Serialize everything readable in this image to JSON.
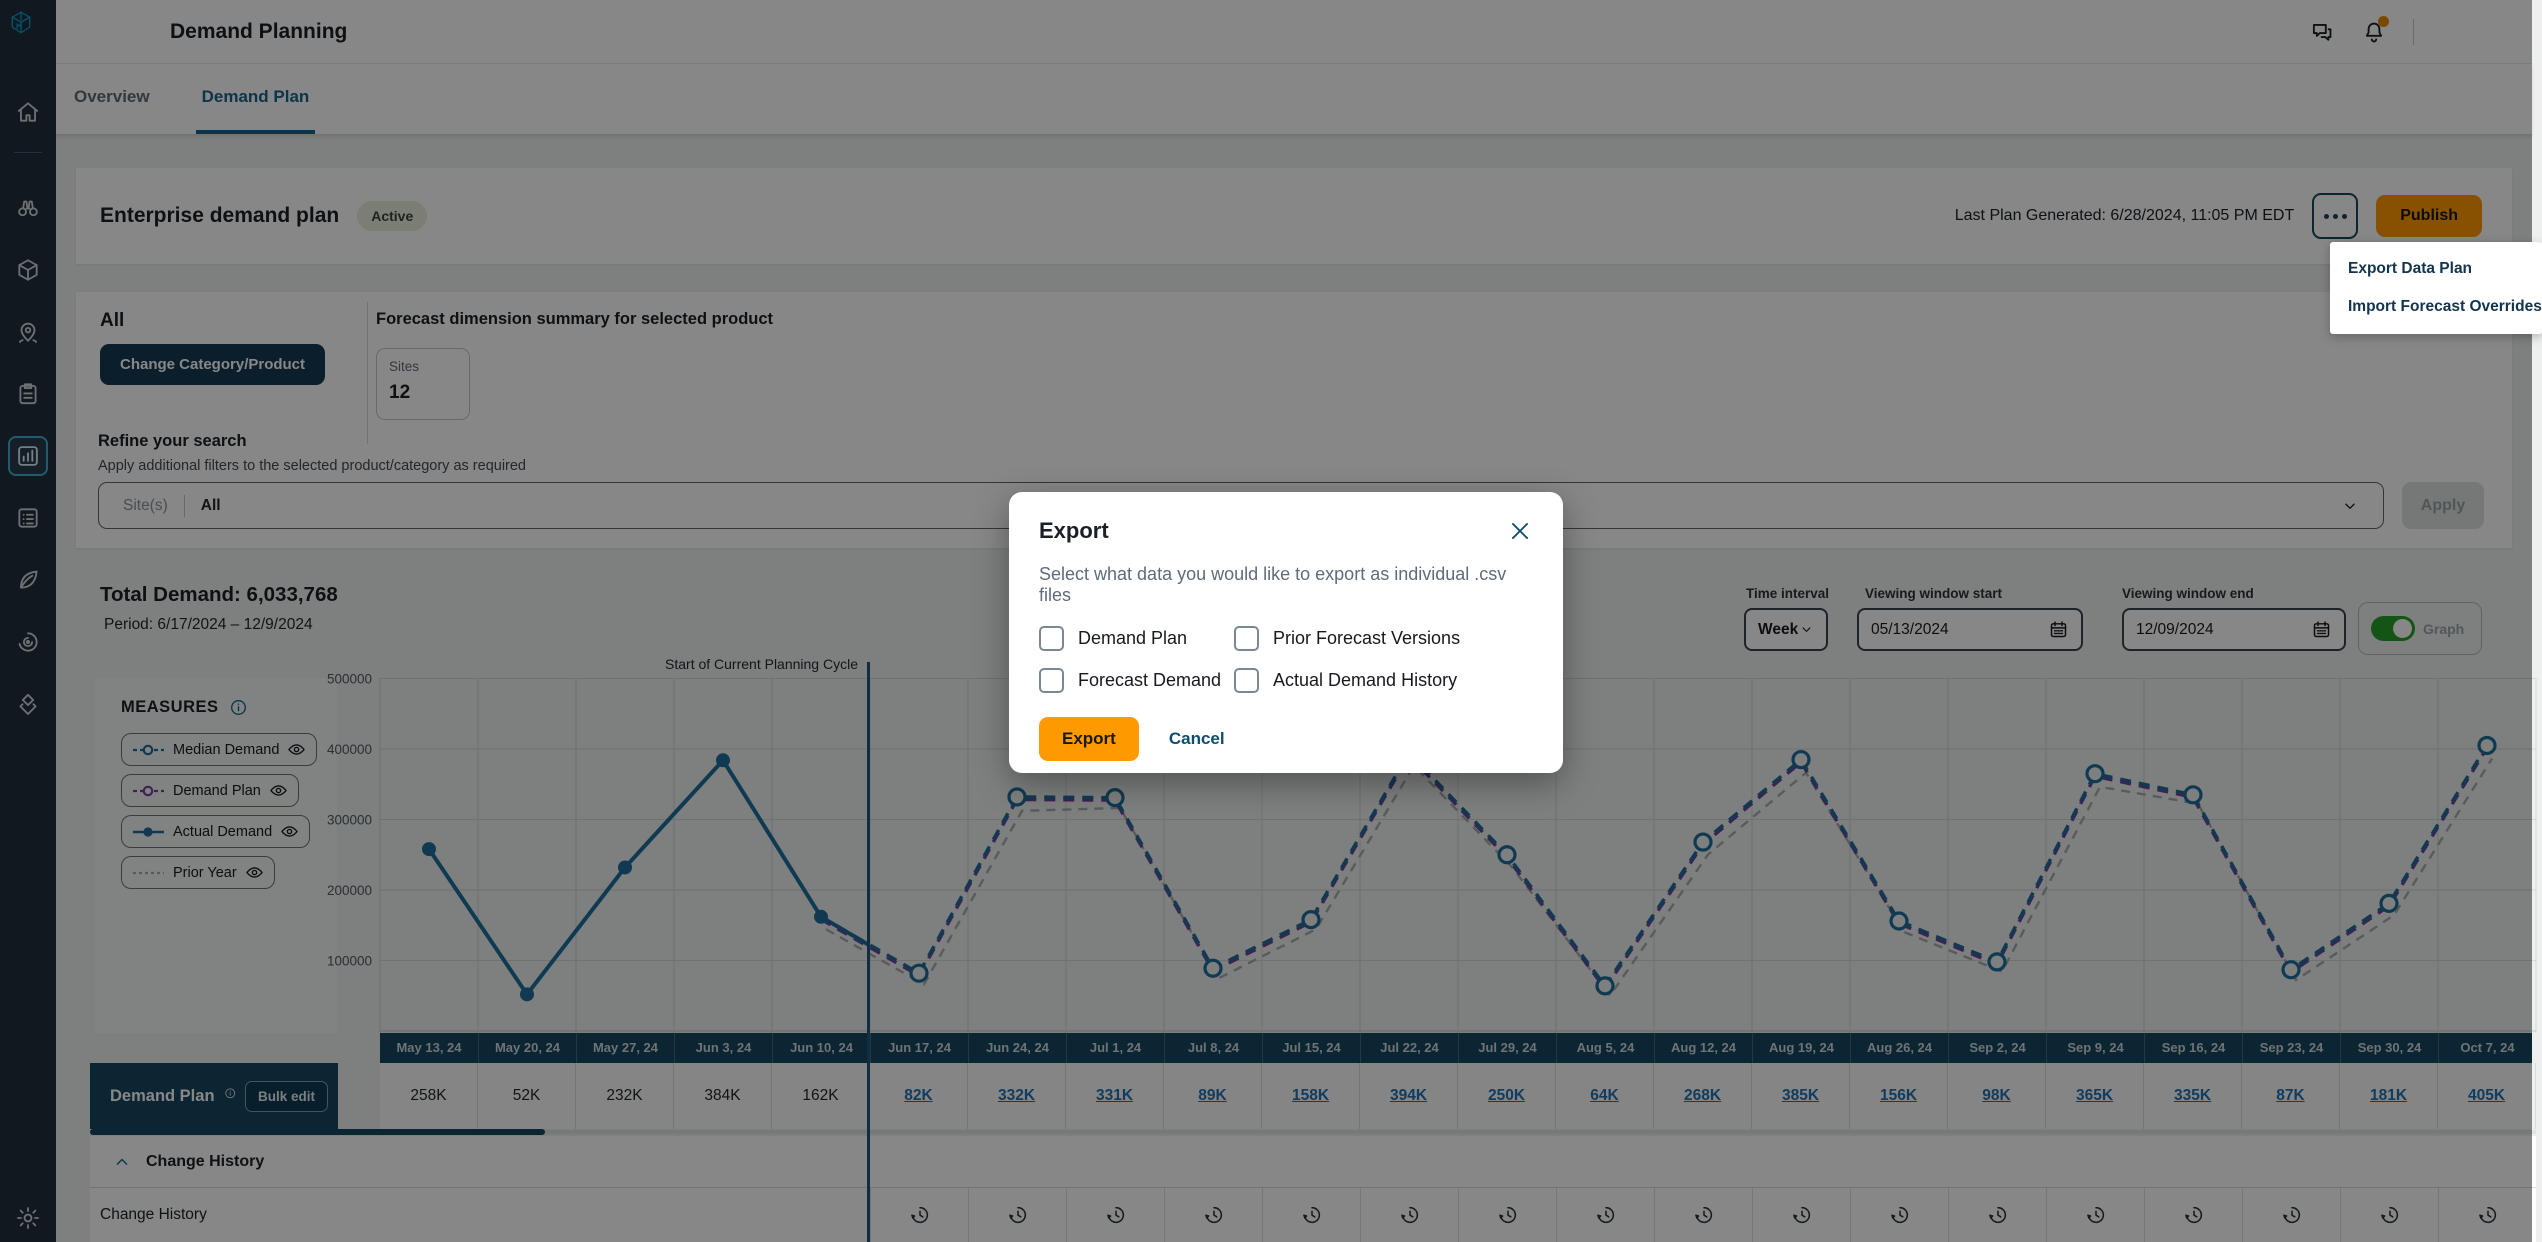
{
  "app": {
    "title": "Demand Planning"
  },
  "sidebar": {
    "logo_icon": "supply-chain-cube",
    "items": [
      {
        "icon": "home",
        "active": false
      },
      {
        "icon": "binoculars",
        "active": false
      },
      {
        "icon": "package",
        "active": false
      },
      {
        "icon": "location-pin",
        "active": false
      },
      {
        "icon": "clipboard",
        "active": false
      },
      {
        "icon": "bar-chart",
        "active": true
      },
      {
        "icon": "list",
        "active": false
      },
      {
        "icon": "leaf",
        "active": false
      },
      {
        "icon": "radar",
        "active": false
      },
      {
        "icon": "layers",
        "active": false
      }
    ],
    "bottom_icon": "gear"
  },
  "header": {
    "icons": [
      "feedback-chat",
      "notification-bell"
    ],
    "notification_dot_color": "#e68a00"
  },
  "tabs": [
    {
      "label": "Overview",
      "active": false
    },
    {
      "label": "Demand Plan",
      "active": true
    }
  ],
  "plan_header": {
    "title": "Enterprise demand plan",
    "status": "Active",
    "last_generated": "Last Plan Generated: 6/28/2024, 11:05 PM EDT",
    "publish_label": "Publish"
  },
  "context_menu": {
    "items": [
      "Export Data Plan",
      "Import Forecast Overrides"
    ]
  },
  "filters": {
    "category": "All",
    "change_button": "Change Category/Product",
    "summary_title": "Forecast dimension summary for selected product",
    "sites_label": "Sites",
    "sites_value": "12",
    "refine_title": "Refine your search",
    "refine_subtitle": "Apply additional filters to the selected product/category as required",
    "site_filter_label": "Site(s)",
    "site_filter_value": "All",
    "apply_label": "Apply"
  },
  "summary": {
    "total_label": "Total Demand: 6,033,768",
    "period": "Period: 6/17/2024 – 12/9/2024",
    "time_interval_label": "Time interval",
    "time_interval_value": "Week",
    "window_start_label": "Viewing window start",
    "window_start_value": "05/13/2024",
    "window_end_label": "Viewing window end",
    "window_end_value": "12/09/2024",
    "graph_toggle_label": "Graph",
    "graph_toggle_on": true,
    "toggle_color": "#26a029"
  },
  "measures": {
    "title": "MEASURES",
    "items": [
      {
        "label": "Median Demand",
        "color": "#1e6f9b",
        "style": "dashed-open"
      },
      {
        "label": "Demand Plan",
        "color": "#7a3f9d",
        "style": "dashed-open"
      },
      {
        "label": "Actual Demand",
        "color": "#1e6f9b",
        "style": "solid-filled"
      },
      {
        "label": "Prior Year",
        "color": "#a9adad",
        "style": "dashed"
      }
    ]
  },
  "planning_cycle": {
    "label": "Start of Current Planning Cycle",
    "column_index": 5
  },
  "chart_data": {
    "type": "line",
    "title": "",
    "x": [
      "May 13, 24",
      "May 20, 24",
      "May 27, 24",
      "Jun 3, 24",
      "Jun 10, 24",
      "Jun 17, 24",
      "Jun 24, 24",
      "Jul 1, 24",
      "Jul 8, 24",
      "Jul 15, 24",
      "Jul 22, 24",
      "Jul 29, 24",
      "Aug 5, 24",
      "Aug 12, 24",
      "Aug 19, 24",
      "Aug 26, 24",
      "Sep 2, 24",
      "Sep 9, 24",
      "Sep 16, 24",
      "Sep 23, 24",
      "Sep 30, 24",
      "Oct 7, 24"
    ],
    "ylim": [
      0,
      500000
    ],
    "yticks": [
      100000,
      200000,
      300000,
      400000,
      500000
    ],
    "grid": true,
    "legend_position": "left",
    "series": [
      {
        "name": "Actual Demand",
        "style": "solid",
        "color": "#1e6f9b",
        "values": [
          258000,
          52000,
          232000,
          384000,
          162000,
          null,
          null,
          null,
          null,
          null,
          null,
          null,
          null,
          null,
          null,
          null,
          null,
          null,
          null,
          null,
          null,
          null
        ]
      },
      {
        "name": "Median Demand",
        "style": "dashed",
        "color": "#1e6f9b",
        "values": [
          null,
          null,
          null,
          null,
          162000,
          82000,
          332000,
          331000,
          89000,
          158000,
          394000,
          250000,
          64000,
          268000,
          385000,
          156000,
          98000,
          365000,
          335000,
          87000,
          181000,
          405000
        ]
      },
      {
        "name": "Demand Plan",
        "style": "dashed",
        "color": "#7a3f9d",
        "values": [
          null,
          null,
          null,
          null,
          162000,
          82000,
          332000,
          331000,
          89000,
          158000,
          394000,
          250000,
          64000,
          268000,
          385000,
          156000,
          98000,
          365000,
          335000,
          87000,
          181000,
          405000
        ]
      },
      {
        "name": "Prior Year",
        "style": "dashed",
        "color": "#a9adad",
        "values": [
          null,
          null,
          null,
          null,
          150000,
          72000,
          318000,
          322000,
          80000,
          150000,
          382000,
          238000,
          56000,
          256000,
          372000,
          146000,
          90000,
          352000,
          328000,
          78000,
          170000,
          392000
        ]
      }
    ]
  },
  "table": {
    "row_label": "Demand Plan",
    "bulk_edit": "Bulk edit",
    "values": [
      "258K",
      "52K",
      "232K",
      "384K",
      "162K",
      "82K",
      "332K",
      "331K",
      "89K",
      "158K",
      "394K",
      "250K",
      "64K",
      "268K",
      "385K",
      "156K",
      "98K",
      "365K",
      "335K",
      "87K",
      "181K",
      "405K"
    ],
    "editable_from_index": 5
  },
  "change_history": {
    "section_title": "Change History",
    "row_label": "Change History",
    "icon": "history-clock",
    "icons_from_index": 5
  },
  "modal": {
    "title": "Export",
    "subtitle": "Select what data you would like to export as individual .csv files",
    "checkboxes": [
      {
        "label": "Demand Plan",
        "checked": false
      },
      {
        "label": "Prior Forecast Versions",
        "checked": false
      },
      {
        "label": "Forecast Demand",
        "checked": false
      },
      {
        "label": "Actual Demand History",
        "checked": false
      }
    ],
    "confirm_label": "Export",
    "cancel_label": "Cancel",
    "accent_color": "#ff9900"
  },
  "colors": {
    "accent_orange": "#ff9900",
    "link_blue": "#1f72b4",
    "chart_teal": "#1e6f9b",
    "purple": "#7a3f9d",
    "navy_fill": "#17465f",
    "sidebar_bg": "#232f3e",
    "toggle_green": "#26a029"
  }
}
